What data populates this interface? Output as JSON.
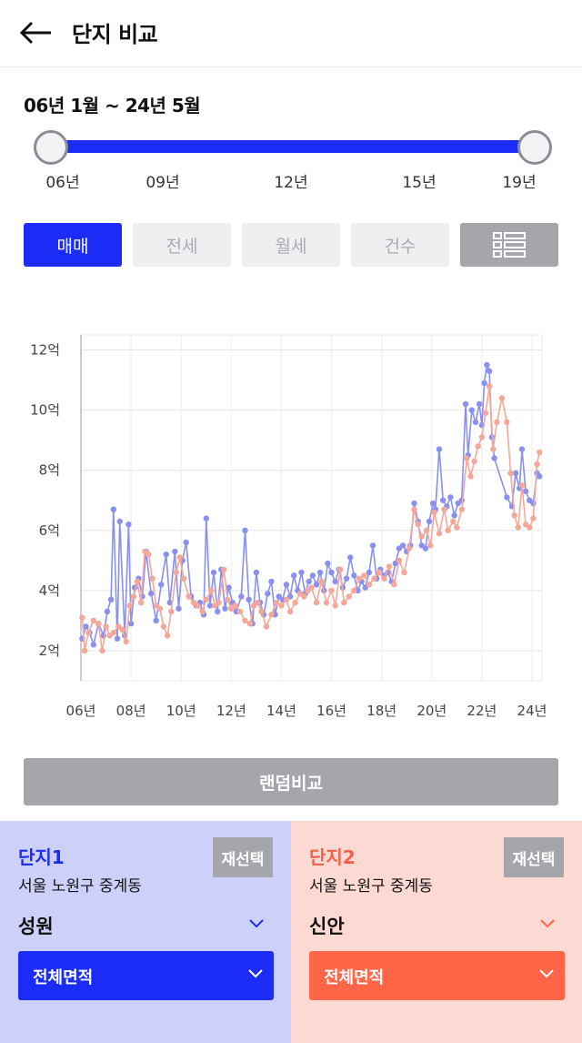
{
  "header": {
    "title": "단지 비교",
    "back_icon": "arrow-left-icon"
  },
  "period": {
    "label": "06년 1월 ~ 24년 5월",
    "slider_start": 0.0,
    "slider_end": 1.0,
    "ticks": [
      "06년",
      "09년",
      "12년",
      "15년",
      "19년"
    ],
    "accent": "#1a2cf5"
  },
  "tabs": [
    {
      "label": "매매",
      "active": true
    },
    {
      "label": "전세",
      "active": false
    },
    {
      "label": "월세",
      "active": false
    },
    {
      "label": "건수",
      "active": false
    }
  ],
  "list_toggle_icon": "list-icon",
  "chart_data": {
    "type": "line",
    "x_ticks": [
      "06년",
      "08년",
      "10년",
      "12년",
      "14년",
      "16년",
      "18년",
      "20년",
      "22년",
      "24년"
    ],
    "y_ticks": [
      "2억",
      "4억",
      "6억",
      "8억",
      "10억",
      "12억"
    ],
    "ylim": [
      1.0,
      12.5
    ],
    "xlim": [
      2006.0,
      2024.4
    ],
    "grid": true,
    "series": [
      {
        "color": "#8a90ee",
        "points": [
          [
            2006.05,
            2.4
          ],
          [
            2006.2,
            2.8
          ],
          [
            2006.35,
            2.6
          ],
          [
            2006.5,
            2.2
          ],
          [
            2006.7,
            2.9
          ],
          [
            2006.9,
            2.5
          ],
          [
            2007.05,
            3.3
          ],
          [
            2007.2,
            3.7
          ],
          [
            2007.3,
            6.7
          ],
          [
            2007.45,
            2.4
          ],
          [
            2007.55,
            6.3
          ],
          [
            2007.75,
            2.5
          ],
          [
            2007.9,
            6.2
          ],
          [
            2008.0,
            2.9
          ],
          [
            2008.15,
            4.1
          ],
          [
            2008.3,
            4.4
          ],
          [
            2008.45,
            3.8
          ],
          [
            2008.6,
            5.3
          ],
          [
            2008.8,
            3.9
          ],
          [
            2009.0,
            3.0
          ],
          [
            2009.2,
            4.2
          ],
          [
            2009.4,
            5.2
          ],
          [
            2009.55,
            3.6
          ],
          [
            2009.75,
            5.3
          ],
          [
            2009.9,
            3.4
          ],
          [
            2010.05,
            5.0
          ],
          [
            2010.2,
            5.6
          ],
          [
            2010.4,
            3.8
          ],
          [
            2010.6,
            3.5
          ],
          [
            2010.75,
            3.6
          ],
          [
            2010.9,
            3.2
          ],
          [
            2011.0,
            6.4
          ],
          [
            2011.15,
            3.5
          ],
          [
            2011.3,
            4.6
          ],
          [
            2011.45,
            3.3
          ],
          [
            2011.6,
            4.7
          ],
          [
            2011.75,
            3.4
          ],
          [
            2011.9,
            4.1
          ],
          [
            2012.05,
            3.6
          ],
          [
            2012.2,
            3.3
          ],
          [
            2012.4,
            3.8
          ],
          [
            2012.55,
            6.0
          ],
          [
            2012.7,
            3.7
          ],
          [
            2012.85,
            2.9
          ],
          [
            2013.0,
            4.6
          ],
          [
            2013.15,
            3.6
          ],
          [
            2013.3,
            3.2
          ],
          [
            2013.45,
            3.9
          ],
          [
            2013.6,
            4.3
          ],
          [
            2013.75,
            3.2
          ],
          [
            2013.9,
            3.8
          ],
          [
            2014.05,
            3.7
          ],
          [
            2014.2,
            4.2
          ],
          [
            2014.35,
            3.8
          ],
          [
            2014.5,
            4.5
          ],
          [
            2014.65,
            4.0
          ],
          [
            2014.8,
            4.6
          ],
          [
            2014.95,
            3.9
          ],
          [
            2015.1,
            4.3
          ],
          [
            2015.25,
            4.5
          ],
          [
            2015.4,
            4.2
          ],
          [
            2015.55,
            4.6
          ],
          [
            2015.7,
            4.0
          ],
          [
            2015.85,
            4.9
          ],
          [
            2016.0,
            4.6
          ],
          [
            2016.15,
            4.3
          ],
          [
            2016.3,
            4.7
          ],
          [
            2016.45,
            4.1
          ],
          [
            2016.6,
            4.4
          ],
          [
            2016.75,
            5.1
          ],
          [
            2016.9,
            4.5
          ],
          [
            2017.05,
            4.0
          ],
          [
            2017.2,
            4.3
          ],
          [
            2017.35,
            4.1
          ],
          [
            2017.5,
            4.6
          ],
          [
            2017.65,
            5.5
          ],
          [
            2017.8,
            4.4
          ],
          [
            2017.95,
            4.7
          ],
          [
            2018.1,
            4.5
          ],
          [
            2018.25,
            4.6
          ],
          [
            2018.4,
            4.3
          ],
          [
            2018.55,
            4.9
          ],
          [
            2018.7,
            5.4
          ],
          [
            2018.85,
            5.5
          ],
          [
            2019.0,
            5.3
          ],
          [
            2019.15,
            5.5
          ],
          [
            2019.3,
            6.9
          ],
          [
            2019.45,
            6.3
          ],
          [
            2019.6,
            5.5
          ],
          [
            2019.75,
            5.4
          ],
          [
            2019.9,
            6.3
          ],
          [
            2020.05,
            6.9
          ],
          [
            2020.15,
            6.7
          ],
          [
            2020.3,
            8.7
          ],
          [
            2020.45,
            7.0
          ],
          [
            2020.6,
            6.8
          ],
          [
            2020.75,
            7.1
          ],
          [
            2020.9,
            6.5
          ],
          [
            2021.05,
            6.9
          ],
          [
            2021.2,
            7.0
          ],
          [
            2021.35,
            10.2
          ],
          [
            2021.45,
            8.5
          ],
          [
            2021.6,
            10.0
          ],
          [
            2021.75,
            9.6
          ],
          [
            2021.9,
            10.2
          ],
          [
            2022.0,
            9.5
          ],
          [
            2022.1,
            10.9
          ],
          [
            2022.2,
            11.5
          ],
          [
            2022.3,
            11.3
          ],
          [
            2022.4,
            9.1
          ],
          [
            2022.5,
            8.4
          ],
          [
            2023.0,
            7.1
          ],
          [
            2023.2,
            6.8
          ],
          [
            2023.35,
            7.9
          ],
          [
            2023.5,
            7.4
          ],
          [
            2023.6,
            8.7
          ],
          [
            2023.75,
            7.3
          ],
          [
            2023.9,
            7.0
          ],
          [
            2024.05,
            6.9
          ],
          [
            2024.2,
            7.9
          ],
          [
            2024.3,
            7.8
          ]
        ]
      },
      {
        "color": "#f5a89a",
        "points": [
          [
            2006.05,
            3.1
          ],
          [
            2006.15,
            2.0
          ],
          [
            2006.3,
            2.6
          ],
          [
            2006.5,
            3.0
          ],
          [
            2006.7,
            2.9
          ],
          [
            2006.85,
            2.0
          ],
          [
            2007.0,
            2.8
          ],
          [
            2007.15,
            2.5
          ],
          [
            2007.3,
            2.6
          ],
          [
            2007.5,
            2.8
          ],
          [
            2007.65,
            2.7
          ],
          [
            2007.8,
            2.3
          ],
          [
            2007.95,
            3.5
          ],
          [
            2008.1,
            3.8
          ],
          [
            2008.25,
            4.3
          ],
          [
            2008.4,
            3.6
          ],
          [
            2008.55,
            5.3
          ],
          [
            2008.7,
            5.2
          ],
          [
            2008.85,
            4.4
          ],
          [
            2009.0,
            3.5
          ],
          [
            2009.15,
            3.4
          ],
          [
            2009.3,
            2.8
          ],
          [
            2009.45,
            2.5
          ],
          [
            2009.6,
            3.3
          ],
          [
            2009.8,
            4.6
          ],
          [
            2009.95,
            5.1
          ],
          [
            2010.1,
            4.4
          ],
          [
            2010.3,
            3.8
          ],
          [
            2010.5,
            3.6
          ],
          [
            2010.65,
            3.5
          ],
          [
            2010.85,
            3.3
          ],
          [
            2011.0,
            3.7
          ],
          [
            2011.2,
            4.0
          ],
          [
            2011.35,
            3.5
          ],
          [
            2011.5,
            3.6
          ],
          [
            2011.7,
            4.7
          ],
          [
            2011.85,
            3.7
          ],
          [
            2012.0,
            3.4
          ],
          [
            2012.15,
            3.5
          ],
          [
            2012.35,
            3.3
          ],
          [
            2012.55,
            3.0
          ],
          [
            2012.75,
            2.9
          ],
          [
            2012.9,
            3.5
          ],
          [
            2013.05,
            3.6
          ],
          [
            2013.2,
            3.3
          ],
          [
            2013.4,
            2.8
          ],
          [
            2013.6,
            3.2
          ],
          [
            2013.8,
            3.6
          ],
          [
            2014.0,
            3.5
          ],
          [
            2014.2,
            3.7
          ],
          [
            2014.35,
            3.3
          ],
          [
            2014.55,
            3.6
          ],
          [
            2014.75,
            3.9
          ],
          [
            2014.9,
            3.8
          ],
          [
            2015.05,
            4.0
          ],
          [
            2015.2,
            4.1
          ],
          [
            2015.4,
            3.6
          ],
          [
            2015.6,
            4.3
          ],
          [
            2015.8,
            3.6
          ],
          [
            2016.0,
            4.0
          ],
          [
            2016.15,
            3.5
          ],
          [
            2016.35,
            4.7
          ],
          [
            2016.5,
            3.6
          ],
          [
            2016.7,
            3.8
          ],
          [
            2016.9,
            4.0
          ],
          [
            2017.1,
            4.4
          ],
          [
            2017.3,
            4.5
          ],
          [
            2017.5,
            4.2
          ],
          [
            2017.7,
            4.4
          ],
          [
            2017.9,
            4.6
          ],
          [
            2018.1,
            4.4
          ],
          [
            2018.3,
            4.8
          ],
          [
            2018.5,
            4.2
          ],
          [
            2018.7,
            5.0
          ],
          [
            2018.9,
            4.6
          ],
          [
            2019.1,
            5.4
          ],
          [
            2019.3,
            6.7
          ],
          [
            2019.45,
            6.2
          ],
          [
            2019.6,
            5.8
          ],
          [
            2019.8,
            6.0
          ],
          [
            2019.95,
            5.5
          ],
          [
            2020.1,
            6.6
          ],
          [
            2020.3,
            5.9
          ],
          [
            2020.5,
            6.7
          ],
          [
            2020.65,
            6.0
          ],
          [
            2020.85,
            6.3
          ],
          [
            2021.0,
            6.1
          ],
          [
            2021.2,
            6.7
          ],
          [
            2021.4,
            8.4
          ],
          [
            2021.55,
            7.8
          ],
          [
            2021.7,
            8.3
          ],
          [
            2021.85,
            8.8
          ],
          [
            2022.0,
            9.1
          ],
          [
            2022.15,
            9.9
          ],
          [
            2022.3,
            10.8
          ],
          [
            2022.45,
            8.7
          ],
          [
            2022.6,
            9.6
          ],
          [
            2022.8,
            10.4
          ],
          [
            2023.0,
            9.6
          ],
          [
            2023.15,
            7.9
          ],
          [
            2023.3,
            6.5
          ],
          [
            2023.45,
            6.1
          ],
          [
            2023.6,
            7.5
          ],
          [
            2023.75,
            6.2
          ],
          [
            2023.9,
            6.1
          ],
          [
            2024.05,
            6.4
          ],
          [
            2024.2,
            8.2
          ],
          [
            2024.3,
            8.6
          ]
        ]
      }
    ]
  },
  "random_compare_label": "랜덤비교",
  "complex1": {
    "title": "단지1",
    "reselect_label": "재선택",
    "region": "서울 노원구 중계동",
    "name": "성원",
    "area": "전체면적",
    "accent": "#1a2cf5",
    "bg": "#cdd1fa"
  },
  "complex2": {
    "title": "단지2",
    "reselect_label": "재선택",
    "region": "서울 노원구 중계동",
    "name": "신안",
    "area": "전체면적",
    "accent": "#ff6547",
    "bg": "#fcd9d3"
  }
}
